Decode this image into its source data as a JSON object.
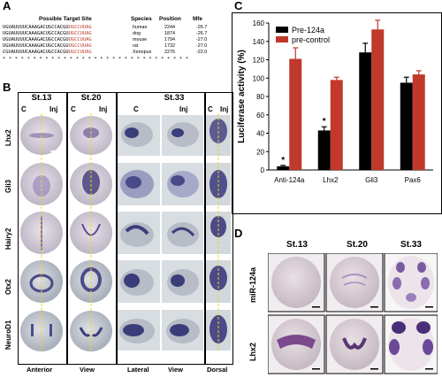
{
  "panel_letters": {
    "a": "A",
    "b": "B",
    "c": "C",
    "d": "D"
  },
  "panelA": {
    "headers": {
      "site": "Possible Target Site",
      "species": "Species",
      "position": "Position",
      "mfe": "Mfe"
    },
    "rows": [
      {
        "seq_black": "UGUAUUUUCAAAGACUGCCACGU",
        "seq_red": "UGCCUUAG",
        "species": "human",
        "position": "2244",
        "mfe": "-26.7"
      },
      {
        "seq_black": "UGUAUUUUCAAAGACUGCCACGU",
        "seq_red": "UGCCUUAG",
        "species": "dog",
        "position": "1874",
        "mfe": "-26.7"
      },
      {
        "seq_black": "UGUAUUUUCAAAGACUGCCACGU",
        "seq_red": "UGCCUUAG",
        "species": "mouse",
        "position": "1794",
        "mfe": "-27.0"
      },
      {
        "seq_black": "UGUAUUUUCAAAGACUGCCACGU",
        "seq_red": "UGCCUUAG",
        "species": "rat",
        "position": "1732",
        "mfe": "-27.0"
      },
      {
        "seq_black": "CGUAUUUUCAAAGACUGCCACGU",
        "seq_red": "UGCCUUAG",
        "species": "Xenopus",
        "position": "2276",
        "mfe": "-22.0"
      }
    ],
    "conservation": "* * * * * * * * * * * * * * * * * * * * * * * * * * * * * * *"
  },
  "panelB": {
    "stages": [
      "St.13",
      "St.20",
      "St.33"
    ],
    "c_label": "C",
    "inj_label": "Inj",
    "dorsal_c_label": "C",
    "genes": [
      "Lhx2",
      "Gli3",
      "Hairy2",
      "Otx2",
      "NeuroD1"
    ],
    "bottom": {
      "anterior": "Anterior",
      "view1": "View",
      "lateral": "Lateral",
      "view2": "View",
      "dorsal": "Dorsal"
    }
  },
  "panelD": {
    "stages": [
      "St.13",
      "St.20",
      "St.33"
    ],
    "rows": [
      "miR-124a",
      "Lhx2"
    ]
  },
  "chart_data": {
    "type": "bar",
    "categories": [
      "Anti-124a",
      "Lhx2",
      "Gli3",
      "Pax6"
    ],
    "series": [
      {
        "name": "Pre-124a",
        "values": [
          4,
          43,
          128,
          95
        ],
        "errors": [
          1,
          4,
          10,
          6
        ],
        "color": "#000000"
      },
      {
        "name": "pre-control",
        "values": [
          121,
          98,
          153,
          104
        ],
        "errors": [
          12,
          3,
          10,
          4
        ],
        "color": "#c0392b"
      }
    ],
    "annotations": [
      {
        "category": "Anti-124a",
        "text": "*"
      },
      {
        "category": "Lhx2",
        "text": "*"
      }
    ],
    "ylabel": "Luciferase activity (%)",
    "ylim": [
      0,
      160
    ],
    "yticks": [
      0,
      20,
      40,
      60,
      80,
      100,
      120,
      140,
      160
    ],
    "legend": "top-left",
    "grid": false
  }
}
